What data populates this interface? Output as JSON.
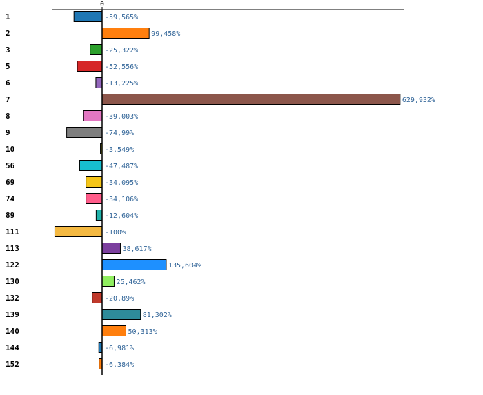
{
  "chart_data": {
    "type": "bar",
    "orientation": "horizontal",
    "title": "",
    "xlabel": "",
    "ylabel": "",
    "zero_tick_label": "0",
    "categories": [
      "1",
      "2",
      "3",
      "5",
      "6",
      "7",
      "8",
      "9",
      "10",
      "56",
      "69",
      "74",
      "89",
      "111",
      "113",
      "122",
      "130",
      "132",
      "139",
      "140",
      "144",
      "152"
    ],
    "values": [
      -59.565,
      99.458,
      -25.322,
      -52.556,
      -13.225,
      629.932,
      -39.003,
      -74.99,
      -3.549,
      -47.487,
      -34.095,
      -34.106,
      -12.604,
      -100,
      38.617,
      135.604,
      25.462,
      -20.89,
      81.302,
      50.313,
      -6.981,
      -6.384
    ],
    "value_labels": [
      "-59,565%",
      "99,458%",
      "-25,322%",
      "-52,556%",
      "-13,225%",
      "629,932%",
      "-39,003%",
      "-74,99%",
      "-3,549%",
      "-47,487%",
      "-34,095%",
      "-34,106%",
      "-12,604%",
      "-100%",
      "38,617%",
      "135,604%",
      "25,462%",
      "-20,89%",
      "81,302%",
      "50,313%",
      "-6,981%",
      "-6,384%"
    ],
    "colors": [
      "#1f77b4",
      "#ff7f0e",
      "#2ca02c",
      "#d62728",
      "#9467bd",
      "#8c564b",
      "#e377c2",
      "#7f7f7f",
      "#bcbd22",
      "#17becf",
      "#f5c518",
      "#ff5c8a",
      "#20b2aa",
      "#f4b942",
      "#7b3f9e",
      "#1e90ff",
      "#90ee60",
      "#c0392b",
      "#2e8b9a",
      "#ff7f0e",
      "#1f77b4",
      "#ff7f0e"
    ],
    "xlim": [
      -100,
      629.932
    ],
    "grid": false,
    "legend": "none"
  }
}
